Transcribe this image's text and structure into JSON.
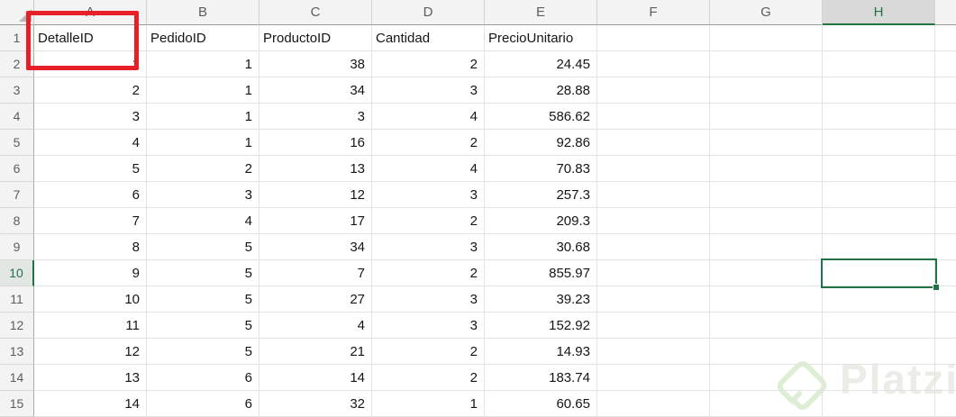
{
  "sheet": {
    "columns": [
      "A",
      "B",
      "C",
      "D",
      "E",
      "F",
      "G",
      "H"
    ],
    "selected_column": "H",
    "selected_row": "10",
    "selected_cell": "H10",
    "rows": [
      {
        "n": "1",
        "cells": [
          "DetalleID",
          "PedidoID",
          "ProductoID",
          "Cantidad",
          "PrecioUnitario"
        ]
      },
      {
        "n": "2",
        "cells": [
          "1",
          "1",
          "38",
          "2",
          "24.45"
        ]
      },
      {
        "n": "3",
        "cells": [
          "2",
          "1",
          "34",
          "3",
          "28.88"
        ]
      },
      {
        "n": "4",
        "cells": [
          "3",
          "1",
          "3",
          "4",
          "586.62"
        ]
      },
      {
        "n": "5",
        "cells": [
          "4",
          "1",
          "16",
          "2",
          "92.86"
        ]
      },
      {
        "n": "6",
        "cells": [
          "5",
          "2",
          "13",
          "4",
          "70.83"
        ]
      },
      {
        "n": "7",
        "cells": [
          "6",
          "3",
          "12",
          "3",
          "257.3"
        ]
      },
      {
        "n": "8",
        "cells": [
          "7",
          "4",
          "17",
          "2",
          "209.3"
        ]
      },
      {
        "n": "9",
        "cells": [
          "8",
          "5",
          "34",
          "3",
          "30.68"
        ]
      },
      {
        "n": "10",
        "cells": [
          "9",
          "5",
          "7",
          "2",
          "855.97"
        ]
      },
      {
        "n": "11",
        "cells": [
          "10",
          "5",
          "27",
          "3",
          "39.23"
        ]
      },
      {
        "n": "12",
        "cells": [
          "11",
          "5",
          "4",
          "3",
          "152.92"
        ]
      },
      {
        "n": "13",
        "cells": [
          "12",
          "5",
          "21",
          "2",
          "14.93"
        ]
      },
      {
        "n": "14",
        "cells": [
          "13",
          "6",
          "14",
          "2",
          "183.74"
        ]
      },
      {
        "n": "15",
        "cells": [
          "14",
          "6",
          "32",
          "1",
          "60.65"
        ]
      }
    ]
  },
  "annotation": {
    "type": "red-box",
    "target_cell": "A1"
  },
  "watermark": {
    "text": "Platzi",
    "logo": "platzi-logo"
  },
  "colors": {
    "excel_green": "#217346",
    "annotation_red": "#e71f26",
    "header_bg": "#f3f3f3",
    "selected_header_bg": "#d9d9d9",
    "grid_line": "#e3e3e3",
    "watermark_text": "#ecebe6",
    "watermark_logo": "#ddeed4"
  }
}
